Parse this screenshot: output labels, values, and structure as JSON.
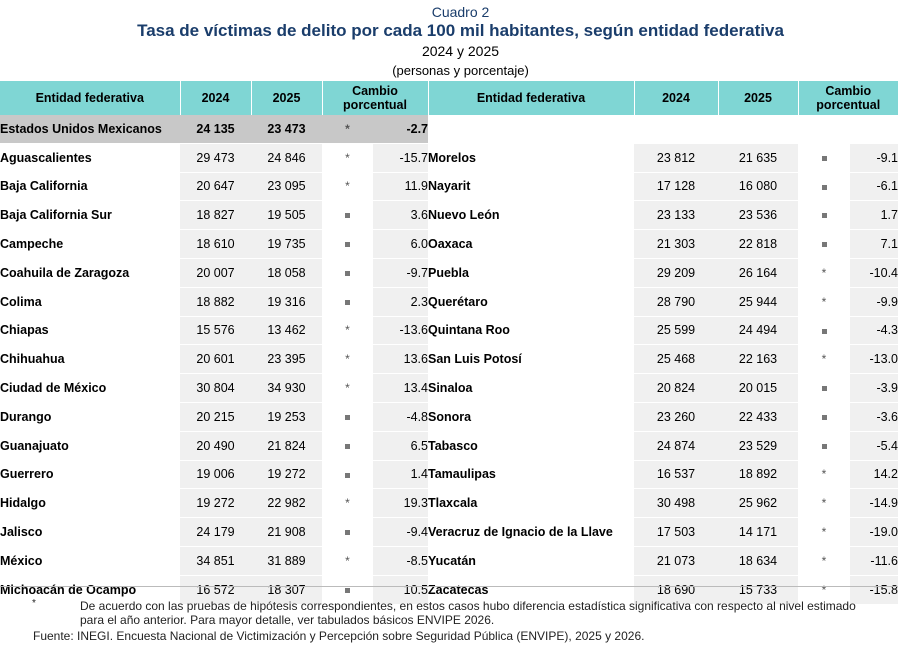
{
  "header": {
    "label": "Cuadro 2",
    "title": "Tasa de víctimas de delito por cada 100 mil habitantes, según entidad federativa",
    "years": "2024 y 2025",
    "units": "(personas y porcentaje)"
  },
  "columns": {
    "entity": "Entidad federativa",
    "y2024": "2024",
    "y2025": "2025",
    "change_line1": "Cambio",
    "change_line2": "porcentual"
  },
  "national": {
    "name": "Estados Unidos Mexicanos",
    "y2024": "24 135",
    "y2025": "23 473",
    "sig": "*",
    "change": "-2.7"
  },
  "left_rows": [
    {
      "name": "Aguascalientes",
      "y2024": "29 473",
      "y2025": "24 846",
      "sig": "*",
      "change": "-15.7"
    },
    {
      "name": "Baja California",
      "y2024": "20 647",
      "y2025": "23 095",
      "sig": "*",
      "change": "11.9"
    },
    {
      "name": "Baja California Sur",
      "y2024": "18 827",
      "y2025": "19 505",
      "sig": "=",
      "change": "3.6"
    },
    {
      "name": "Campeche",
      "y2024": "18 610",
      "y2025": "19 735",
      "sig": "=",
      "change": "6.0"
    },
    {
      "name": "Coahuila de Zaragoza",
      "y2024": "20 007",
      "y2025": "18 058",
      "sig": "=",
      "change": "-9.7"
    },
    {
      "name": "Colima",
      "y2024": "18 882",
      "y2025": "19 316",
      "sig": "=",
      "change": "2.3"
    },
    {
      "name": "Chiapas",
      "y2024": "15 576",
      "y2025": "13 462",
      "sig": "*",
      "change": "-13.6"
    },
    {
      "name": "Chihuahua",
      "y2024": "20 601",
      "y2025": "23 395",
      "sig": "*",
      "change": "13.6"
    },
    {
      "name": "Ciudad de México",
      "y2024": "30 804",
      "y2025": "34 930",
      "sig": "*",
      "change": "13.4"
    },
    {
      "name": "Durango",
      "y2024": "20 215",
      "y2025": "19 253",
      "sig": "=",
      "change": "-4.8"
    },
    {
      "name": "Guanajuato",
      "y2024": "20 490",
      "y2025": "21 824",
      "sig": "=",
      "change": "6.5"
    },
    {
      "name": "Guerrero",
      "y2024": "19 006",
      "y2025": "19 272",
      "sig": "=",
      "change": "1.4"
    },
    {
      "name": "Hidalgo",
      "y2024": "19 272",
      "y2025": "22 982",
      "sig": "*",
      "change": "19.3"
    },
    {
      "name": "Jalisco",
      "y2024": "24 179",
      "y2025": "21 908",
      "sig": "=",
      "change": "-9.4"
    },
    {
      "name": "México",
      "y2024": "34 851",
      "y2025": "31 889",
      "sig": "*",
      "change": "-8.5"
    },
    {
      "name": "Michoacán de Ocampo",
      "y2024": "16 572",
      "y2025": "18 307",
      "sig": "=",
      "change": "10.5"
    }
  ],
  "right_rows": [
    {
      "name": "Morelos",
      "y2024": "23 812",
      "y2025": "21 635",
      "sig": "=",
      "change": "-9.1"
    },
    {
      "name": "Nayarit",
      "y2024": "17 128",
      "y2025": "16 080",
      "sig": "=",
      "change": "-6.1"
    },
    {
      "name": "Nuevo León",
      "y2024": "23 133",
      "y2025": "23 536",
      "sig": "=",
      "change": "1.7"
    },
    {
      "name": "Oaxaca",
      "y2024": "21 303",
      "y2025": "22 818",
      "sig": "=",
      "change": "7.1"
    },
    {
      "name": "Puebla",
      "y2024": "29 209",
      "y2025": "26 164",
      "sig": "*",
      "change": "-10.4"
    },
    {
      "name": "Querétaro",
      "y2024": "28 790",
      "y2025": "25 944",
      "sig": "*",
      "change": "-9.9"
    },
    {
      "name": "Quintana Roo",
      "y2024": "25 599",
      "y2025": "24 494",
      "sig": "=",
      "change": "-4.3"
    },
    {
      "name": "San Luis Potosí",
      "y2024": "25 468",
      "y2025": "22 163",
      "sig": "*",
      "change": "-13.0"
    },
    {
      "name": "Sinaloa",
      "y2024": "20 824",
      "y2025": "20 015",
      "sig": "=",
      "change": "-3.9"
    },
    {
      "name": "Sonora",
      "y2024": "23 260",
      "y2025": "22 433",
      "sig": "=",
      "change": "-3.6"
    },
    {
      "name": "Tabasco",
      "y2024": "24 874",
      "y2025": "23 529",
      "sig": "=",
      "change": "-5.4"
    },
    {
      "name": "Tamaulipas",
      "y2024": "16 537",
      "y2025": "18 892",
      "sig": "*",
      "change": "14.2"
    },
    {
      "name": "Tlaxcala",
      "y2024": "30 498",
      "y2025": "25 962",
      "sig": "*",
      "change": "-14.9"
    },
    {
      "name": "Veracruz de Ignacio de la Llave",
      "y2024": "17 503",
      "y2025": "14 171",
      "sig": "*",
      "change": "-19.0"
    },
    {
      "name": "Yucatán",
      "y2024": "21 073",
      "y2025": "18 634",
      "sig": "*",
      "change": "-11.6"
    },
    {
      "name": "Zacatecas",
      "y2024": "18 690",
      "y2025": "15 733",
      "sig": "*",
      "change": "-15.8"
    }
  ],
  "notes": {
    "asterisk": "*",
    "text": "De acuerdo con las pruebas de hipótesis correspondientes, en estos casos hubo diferencia estadística significativa con respecto al nivel estimado para el año anterior. Para mayor detalle, ver tabulados básicos ENVIPE 2026.",
    "source_label": "Fuente:",
    "source_text": "INEGI. Encuesta Nacional de Victimización y Percepción sobre Seguridad Pública (ENVIPE), 2025 y 2026."
  },
  "colors": {
    "header_bg": "#7fd6d4",
    "title_color": "#1a3d6b",
    "national_bg": "#c8c8c8",
    "shade_bg": "#f0f0f0"
  }
}
